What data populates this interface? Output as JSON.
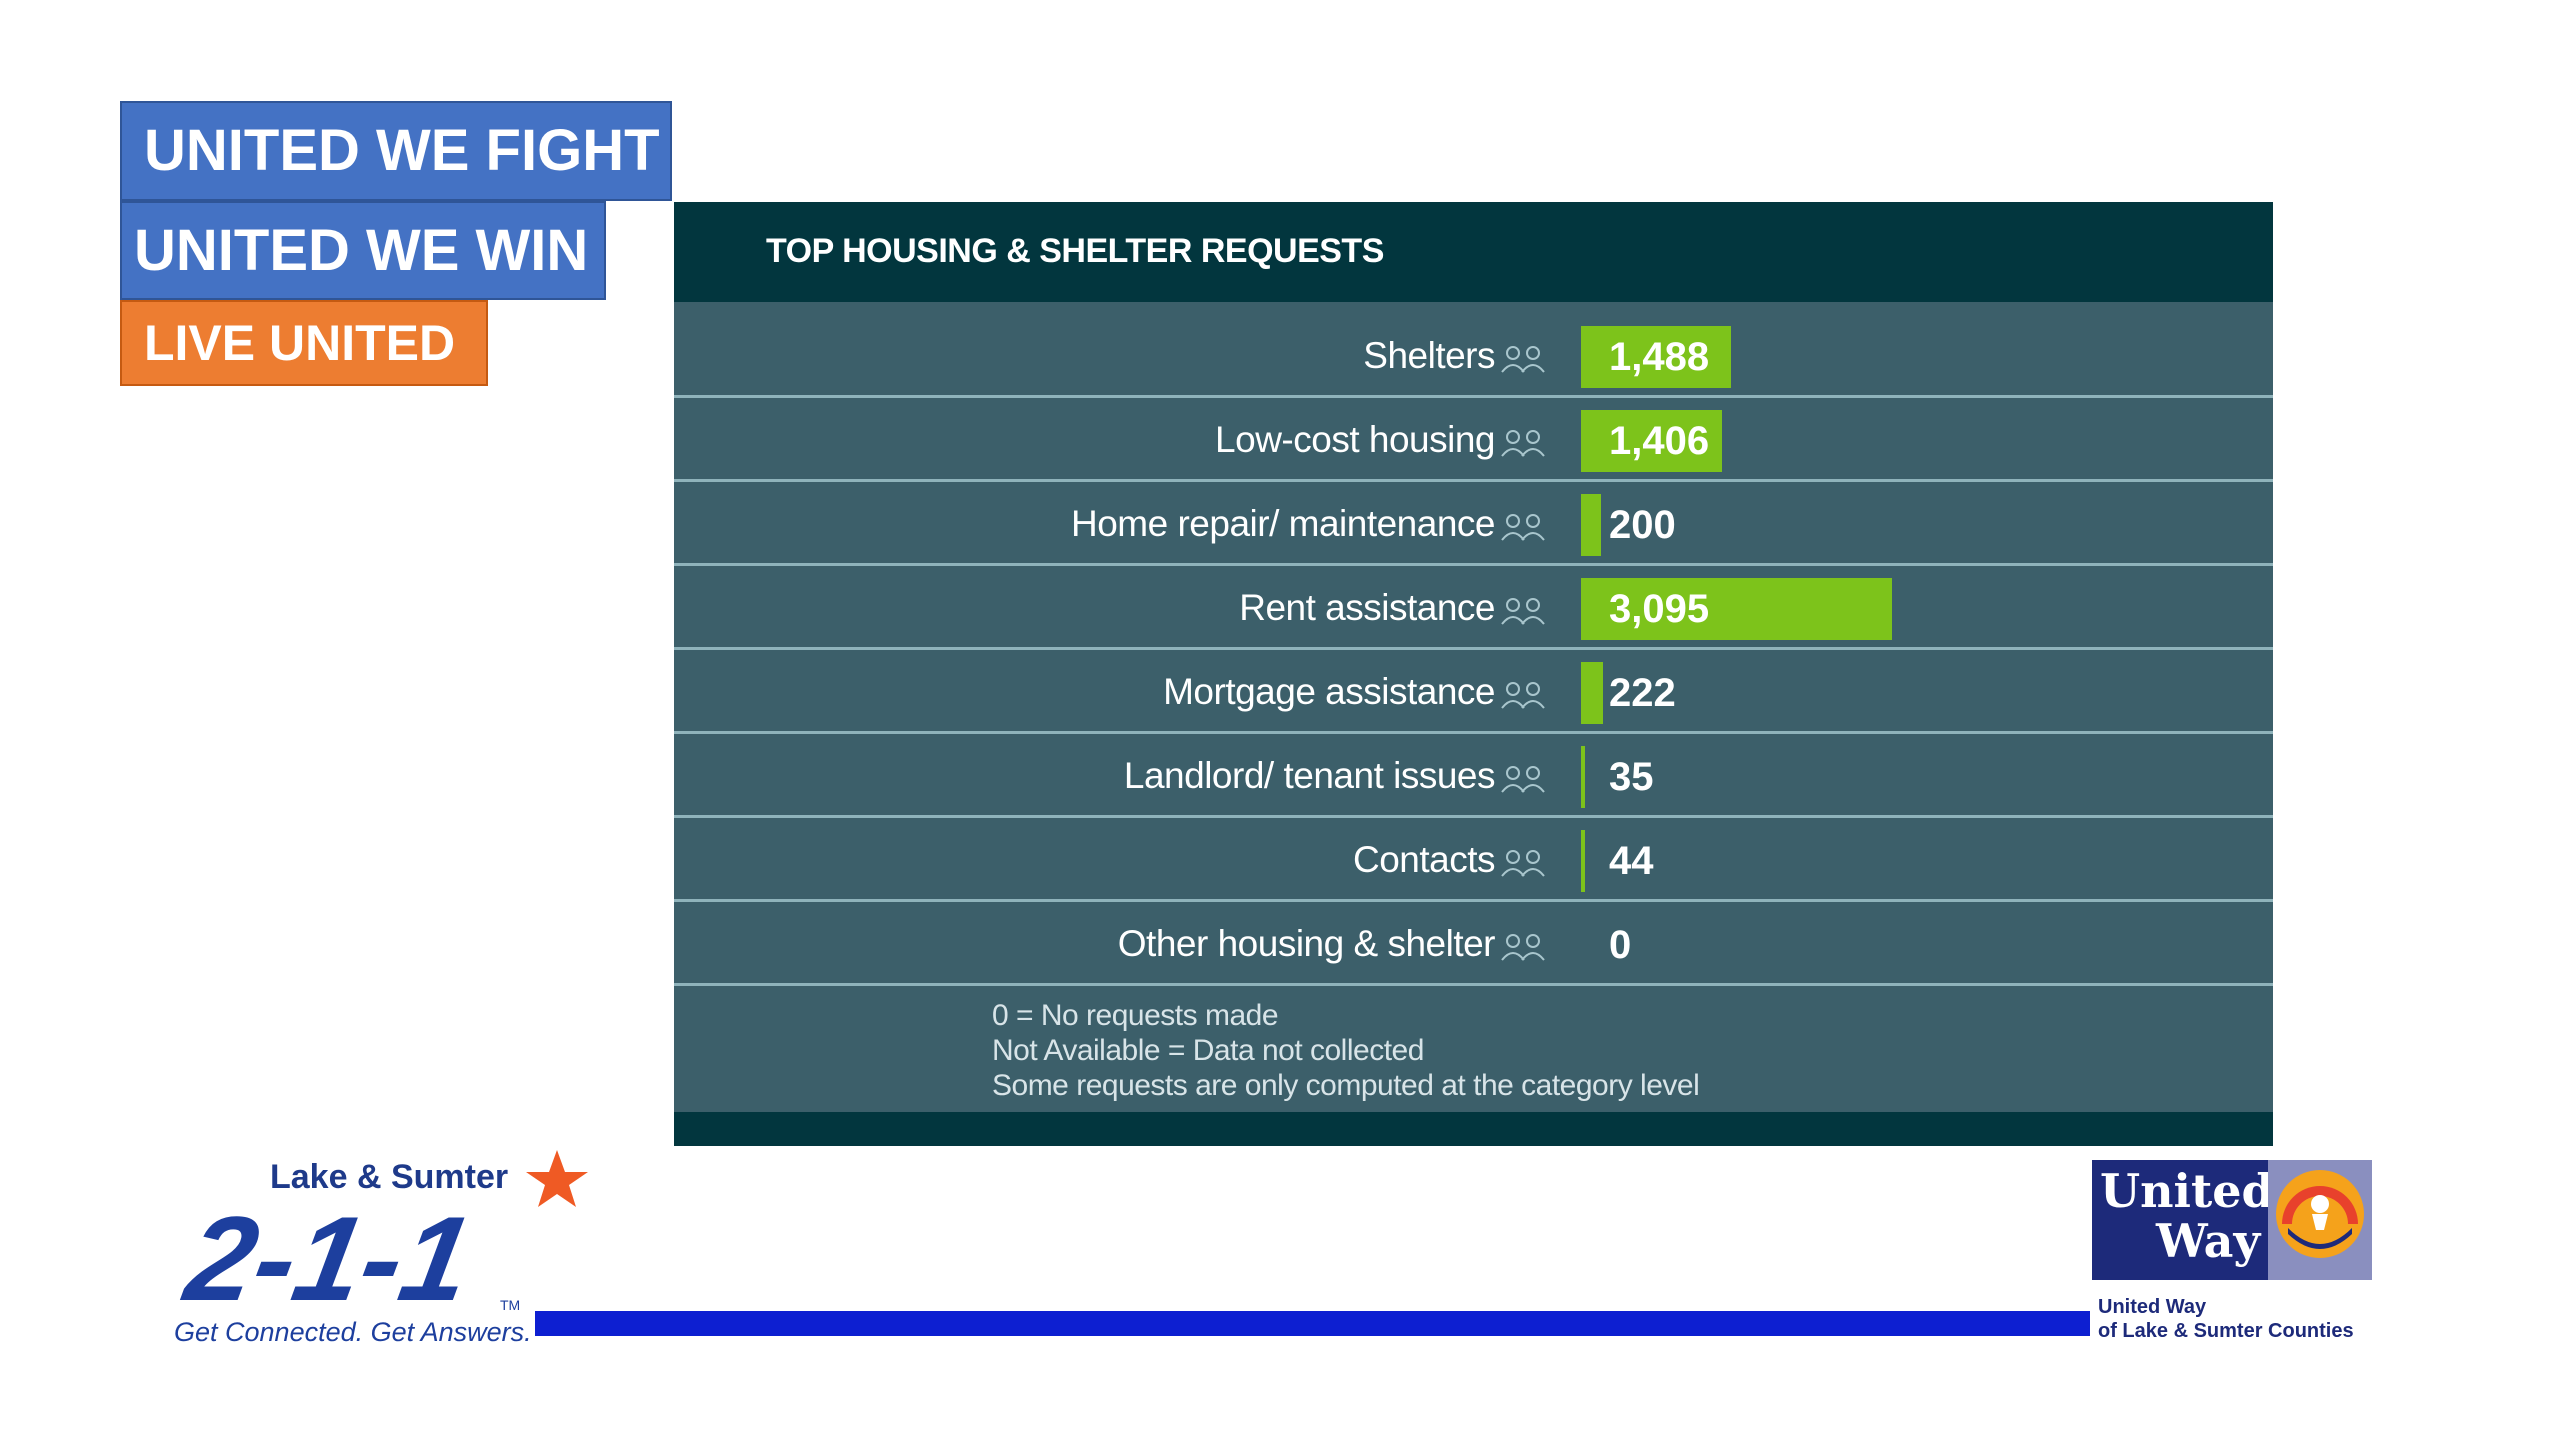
{
  "banners": {
    "line1": "UNITED WE FIGHT",
    "line2": "UNITED WE WIN",
    "line3": "LIVE UNITED"
  },
  "chart_data": {
    "type": "bar",
    "title": "TOP HOUSING & SHELTER REQUESTS",
    "categories": [
      "Shelters",
      "Low-cost housing",
      "Home repair/ maintenance",
      "Rent assistance",
      "Mortgage assistance",
      "Landlord/ tenant issues",
      "Contacts",
      "Other housing & shelter"
    ],
    "values": [
      1488,
      1406,
      200,
      3095,
      222,
      35,
      44,
      0
    ],
    "value_labels": [
      "1,488",
      "1,406",
      "200",
      "3,095",
      "222",
      "35",
      "44",
      "0"
    ],
    "bar_color": "#7dc31b",
    "notes": [
      "0 = No requests made",
      "Not Available = Data not collected",
      "Some requests are only computed at the category level"
    ]
  },
  "icons": {
    "row_icon": "people-icon",
    "logo_star": "star-icon",
    "uw_emblem": "united-way-hand-rainbow-icon"
  },
  "logo211": {
    "region": "Lake & Sumter",
    "number": "2-1-1",
    "tm": "TM",
    "tagline": "Get Connected. Get Answers."
  },
  "united_way": {
    "word1": "United",
    "word2": "Way",
    "caption_line1": "United Way",
    "caption_line2": "of Lake & Sumter Counties"
  },
  "colors": {
    "banner_blue": "#4472c4",
    "banner_orange": "#ed7d31",
    "panel_bg": "#3c5f6a",
    "panel_header": "#02363e",
    "divider_blue": "#0d1fd1",
    "uw_navy": "#1d2a7a",
    "star_orange": "#ef5a24"
  }
}
